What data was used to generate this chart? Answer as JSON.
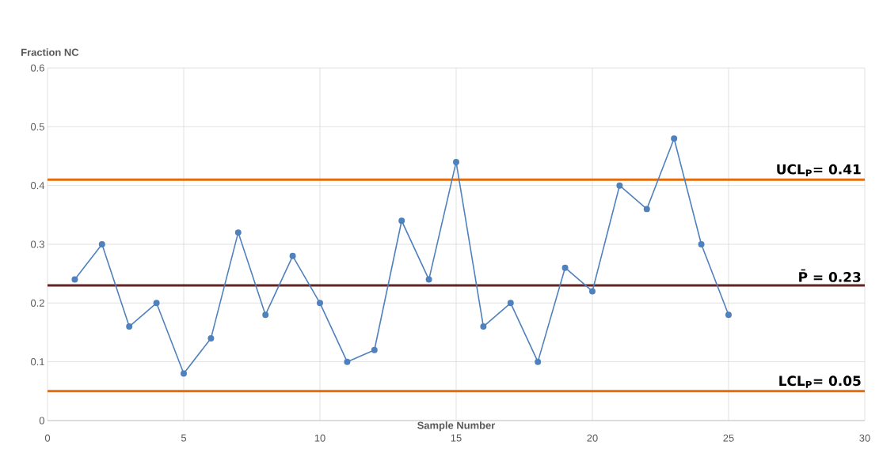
{
  "chart_data": {
    "type": "line",
    "xlabel": "Sample Number",
    "ylabel": "Fraction NC",
    "x": [
      1,
      2,
      3,
      4,
      5,
      6,
      7,
      8,
      9,
      10,
      11,
      12,
      13,
      14,
      15,
      16,
      17,
      18,
      19,
      20,
      21,
      22,
      23,
      24,
      25
    ],
    "series": [
      {
        "color": "#4f81bd",
        "values": [
          0.24,
          0.3,
          0.16,
          0.2,
          0.08,
          0.14,
          0.32,
          0.18,
          0.28,
          0.2,
          0.1,
          0.12,
          0.34,
          0.24,
          0.44,
          0.16,
          0.2,
          0.1,
          0.26,
          0.22,
          0.4,
          0.36,
          0.48,
          0.3,
          0.18
        ]
      }
    ],
    "xlim": [
      0,
      30
    ],
    "xticks": [
      0,
      5,
      10,
      15,
      20,
      25,
      30
    ],
    "ylim": [
      0,
      0.6
    ],
    "yticks": [
      0,
      0.1,
      0.2,
      0.3,
      0.4,
      0.5,
      0.6
    ],
    "grid": true,
    "marker": "circle",
    "line_style": "solid",
    "ref_lines": [
      {
        "axis": "y",
        "value": 0.41,
        "label": "UCL$_{P}$= 0.41",
        "color": "#e46c0a"
      },
      {
        "axis": "y",
        "value": 0.23,
        "label": "P̄ = 0.23",
        "color": "#632523"
      },
      {
        "axis": "y",
        "value": 0.05,
        "label": "LCL$_{P}$= 0.05",
        "color": "#e46c0a"
      }
    ]
  }
}
